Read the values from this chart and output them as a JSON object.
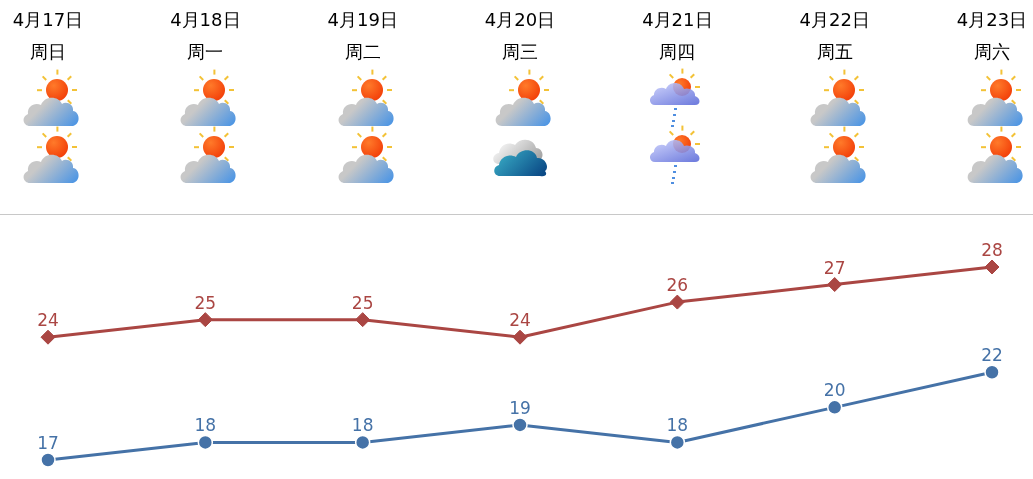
{
  "chart_data": {
    "type": "line",
    "categories": [
      "4月17日周日",
      "4月18日周一",
      "4月19日周二",
      "4月20日周三",
      "4月21日周四",
      "4月22日周五",
      "4月23日周六"
    ],
    "series": [
      {
        "color": "#aa4643",
        "marker": "diamond",
        "values": [
          24,
          25,
          25,
          24,
          26,
          27,
          28
        ]
      },
      {
        "color": "#4572a7",
        "marker": "circle",
        "values": [
          17,
          18,
          18,
          19,
          18,
          20,
          22
        ]
      }
    ],
    "tick_labels": "x",
    "data_labels": true,
    "grid": false,
    "legend": false,
    "line_style": "solid"
  }
}
